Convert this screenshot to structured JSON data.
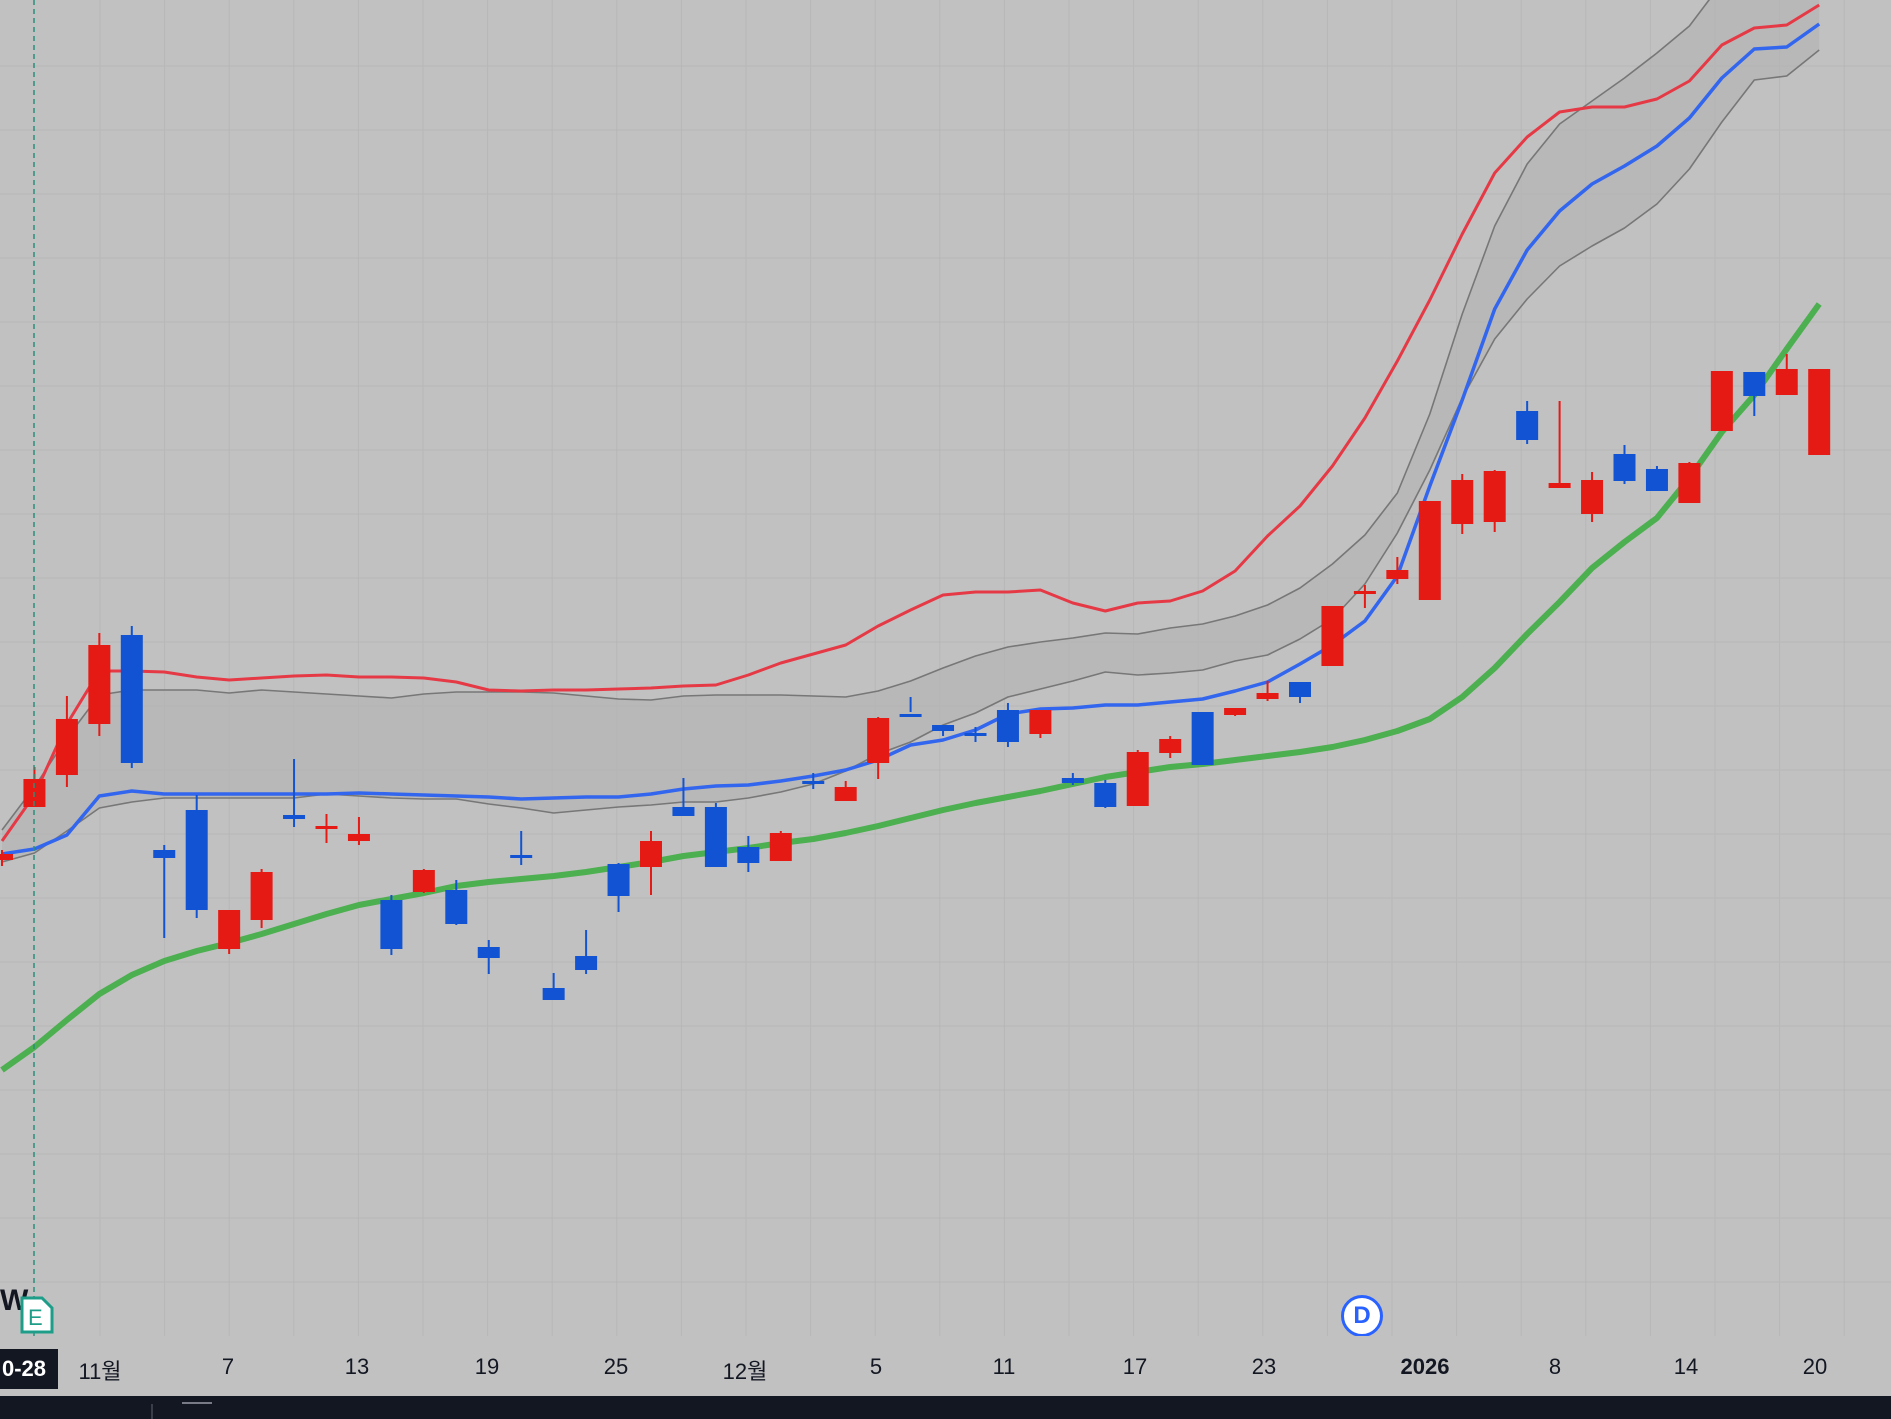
{
  "chart_data": {
    "type": "candlestick",
    "x_axis": {
      "labels": [
        "0-28",
        "11월",
        "7",
        "13",
        "19",
        "25",
        "12월",
        "5",
        "11",
        "17",
        "23",
        "2026",
        "8",
        "14",
        "20"
      ],
      "bold_labels": [
        "2026"
      ]
    },
    "cursor_date_label": "0-28",
    "y_range": [
      0,
      1000
    ],
    "grid": true,
    "colors": {
      "background": "#c1c1c1",
      "up_candle": "#e61a14",
      "down_candle": "#1153d2",
      "sma_fast": "#e63946",
      "sma_slow": "#3366ee",
      "band_line": "#777777",
      "band_fill": "#b4b4b4",
      "sma_long": "#4caf50"
    },
    "candles": [
      {
        "o": 482,
        "c": 476,
        "h": 486,
        "l": 470,
        "up": true
      },
      {
        "o": 557,
        "c": 529,
        "h": 569,
        "l": 530,
        "up": true
      },
      {
        "o": 617,
        "c": 561,
        "h": 640,
        "l": 549,
        "up": true
      },
      {
        "o": 691,
        "c": 612,
        "h": 703,
        "l": 600,
        "up": true
      },
      {
        "o": 573,
        "c": 701,
        "h": 710,
        "l": 568,
        "up": false
      },
      {
        "o": 486,
        "c": 478,
        "h": 491,
        "l": 398,
        "up": false
      },
      {
        "o": 426,
        "c": 526,
        "h": 541,
        "l": 418,
        "up": false
      },
      {
        "o": 387,
        "c": 426,
        "h": 426,
        "l": 382,
        "up": true
      },
      {
        "o": 416,
        "c": 464,
        "h": 467,
        "l": 408,
        "up": true
      },
      {
        "o": 521,
        "c": 517,
        "h": 577,
        "l": 509,
        "up": false
      },
      {
        "o": 510,
        "c": 508,
        "h": 522,
        "l": 493,
        "up": true
      },
      {
        "o": 502,
        "c": 495,
        "h": 519,
        "l": 491,
        "up": true
      },
      {
        "o": 387,
        "c": 436,
        "h": 441,
        "l": 381,
        "up": false
      },
      {
        "o": 444,
        "c": 466,
        "h": 467,
        "l": 443,
        "up": true
      },
      {
        "o": 412,
        "c": 446,
        "h": 456,
        "l": 411,
        "up": false
      },
      {
        "o": 378,
        "c": 389,
        "h": 396,
        "l": 362,
        "up": false
      },
      {
        "o": 481,
        "c": 478,
        "h": 505,
        "l": 471,
        "up": false
      },
      {
        "o": 336,
        "c": 348,
        "h": 363,
        "l": 337,
        "up": false
      },
      {
        "o": 366,
        "c": 380,
        "h": 406,
        "l": 362,
        "up": false
      },
      {
        "o": 472,
        "c": 440,
        "h": 473,
        "l": 424,
        "up": false
      },
      {
        "o": 495,
        "c": 469,
        "h": 505,
        "l": 441,
        "up": true
      },
      {
        "o": 529,
        "c": 520,
        "h": 558,
        "l": 522,
        "up": false
      },
      {
        "o": 469,
        "c": 529,
        "h": 533,
        "l": 470,
        "up": false
      },
      {
        "o": 473,
        "c": 489,
        "h": 500,
        "l": 464,
        "up": false
      },
      {
        "o": 503,
        "c": 475,
        "h": 505,
        "l": 477,
        "up": true
      },
      {
        "o": 555,
        "c": 552,
        "h": 563,
        "l": 547,
        "up": false
      },
      {
        "o": 549,
        "c": 535,
        "h": 555,
        "l": 535,
        "up": true
      },
      {
        "o": 618,
        "c": 573,
        "h": 619,
        "l": 557,
        "up": true
      },
      {
        "o": 621,
        "c": 622,
        "h": 639,
        "l": 624,
        "up": false
      },
      {
        "o": 605,
        "c": 611,
        "h": 611,
        "l": 600,
        "up": false
      },
      {
        "o": 602,
        "c": 603,
        "h": 609,
        "l": 594,
        "up": false
      },
      {
        "o": 594,
        "c": 626,
        "h": 633,
        "l": 589,
        "up": false
      },
      {
        "o": 626,
        "c": 602,
        "h": 625,
        "l": 598,
        "up": true
      },
      {
        "o": 558,
        "c": 553,
        "h": 563,
        "l": 551,
        "up": false
      },
      {
        "o": 529,
        "c": 553,
        "h": 556,
        "l": 528,
        "up": false
      },
      {
        "o": 584,
        "c": 530,
        "h": 586,
        "l": 530,
        "up": true
      },
      {
        "o": 597,
        "c": 583,
        "h": 600,
        "l": 578,
        "up": true
      },
      {
        "o": 571,
        "c": 624,
        "h": 624,
        "l": 577,
        "up": false
      },
      {
        "o": 628,
        "c": 621,
        "h": 627,
        "l": 620,
        "up": true
      },
      {
        "o": 643,
        "c": 637,
        "h": 655,
        "l": 635,
        "up": true
      },
      {
        "o": 639,
        "c": 654,
        "h": 654,
        "l": 633,
        "up": false
      },
      {
        "o": 730,
        "c": 670,
        "h": 730,
        "l": 670,
        "up": true
      },
      {
        "o": 745,
        "c": 745,
        "h": 751,
        "l": 728,
        "up": true
      },
      {
        "o": 766,
        "c": 757,
        "h": 779,
        "l": 752,
        "up": true
      },
      {
        "o": 835,
        "c": 736,
        "h": 835,
        "l": 736,
        "up": true
      },
      {
        "o": 856,
        "c": 812,
        "h": 862,
        "l": 802,
        "up": true
      },
      {
        "o": 865,
        "c": 814,
        "h": 866,
        "l": 804,
        "up": true
      },
      {
        "o": 896,
        "c": 925,
        "h": 935,
        "l": 892,
        "up": false
      },
      {
        "o": 853,
        "c": 848,
        "h": 935,
        "l": 851,
        "up": true
      },
      {
        "o": 856,
        "c": 822,
        "h": 864,
        "l": 814,
        "up": true
      },
      {
        "o": 855,
        "c": 882,
        "h": 891,
        "l": 852,
        "up": false
      },
      {
        "o": 845,
        "c": 867,
        "h": 870,
        "l": 848,
        "up": false
      },
      {
        "o": 833,
        "c": 873,
        "h": 874,
        "l": 833,
        "up": true
      },
      {
        "o": 965,
        "c": 905,
        "h": 965,
        "l": 905,
        "up": true
      },
      {
        "o": 940,
        "c": 964,
        "h": 964,
        "l": 920,
        "up": false
      },
      {
        "o": 967,
        "c": 941,
        "h": 982,
        "l": 942,
        "up": true
      },
      {
        "o": 967,
        "c": 881,
        "h": 966,
        "l": 881,
        "up": true
      }
    ],
    "sma_fast": [
      495,
      541,
      612,
      665,
      665,
      664,
      659,
      656,
      658,
      660,
      661,
      659,
      659,
      658,
      654,
      646,
      645,
      646,
      646,
      647,
      648,
      650,
      651,
      661,
      673,
      682,
      691,
      710,
      726,
      741,
      744,
      744,
      746,
      733,
      725,
      733,
      735,
      745,
      765,
      800,
      830,
      870,
      918,
      975,
      1036,
      1102,
      1163,
      1199,
      1224,
      1229,
      1229,
      1237,
      1255,
      1291,
      1308,
      1311,
      1331
    ],
    "sma_slow": [
      482,
      487,
      501,
      540,
      545,
      542,
      542,
      542,
      542,
      542,
      542,
      543,
      542,
      541,
      540,
      539,
      537,
      538,
      539,
      539,
      542,
      547,
      550,
      551,
      555,
      560,
      566,
      576,
      591,
      596,
      606,
      622,
      627,
      628,
      631,
      631,
      634,
      637,
      645,
      654,
      672,
      691,
      715,
      760,
      850,
      936,
      1027,
      1086,
      1125,
      1152,
      1170,
      1190,
      1218,
      1258,
      1287,
      1289,
      1312
    ],
    "sma_long": [
      266,
      289,
      316,
      342,
      361,
      375,
      385,
      393,
      402,
      412,
      422,
      431,
      437,
      443,
      450,
      454,
      457,
      460,
      464,
      469,
      474,
      480,
      484,
      488,
      493,
      497,
      503,
      510,
      518,
      526,
      533,
      539,
      545,
      552,
      559,
      564,
      569,
      572,
      576,
      580,
      584,
      589,
      596,
      605,
      617,
      639,
      668,
      702,
      734,
      768,
      794,
      818,
      858,
      904,
      941,
      987,
      1032
    ],
    "band_upper": [
      506,
      549,
      598,
      641,
      646,
      646,
      646,
      643,
      646,
      644,
      642,
      640,
      638,
      642,
      644,
      644,
      644,
      643,
      640,
      637,
      636,
      640,
      641,
      641,
      641,
      640,
      639,
      645,
      655,
      668,
      680,
      689,
      694,
      698,
      703,
      702,
      708,
      712,
      720,
      731,
      748,
      772,
      801,
      843,
      922,
      1022,
      1110,
      1172,
      1212,
      1235,
      1258,
      1283,
      1310,
      1353,
      1394,
      1424,
      1440
    ],
    "band_lower": [
      474,
      483,
      505,
      528,
      534,
      538,
      538,
      538,
      538,
      538,
      542,
      540,
      538,
      537,
      537,
      532,
      528,
      523,
      526,
      529,
      531,
      534,
      534,
      538,
      544,
      552,
      565,
      582,
      594,
      611,
      623,
      639,
      647,
      655,
      664,
      661,
      663,
      666,
      675,
      681,
      697,
      717,
      752,
      803,
      866,
      938,
      997,
      1037,
      1070,
      1090,
      1108,
      1132,
      1167,
      1214,
      1256,
      1260,
      1286
    ]
  },
  "markers": {
    "earnings": {
      "top_letter": "W",
      "badge_letter": "E"
    },
    "dividend": {
      "letter": "D"
    }
  }
}
